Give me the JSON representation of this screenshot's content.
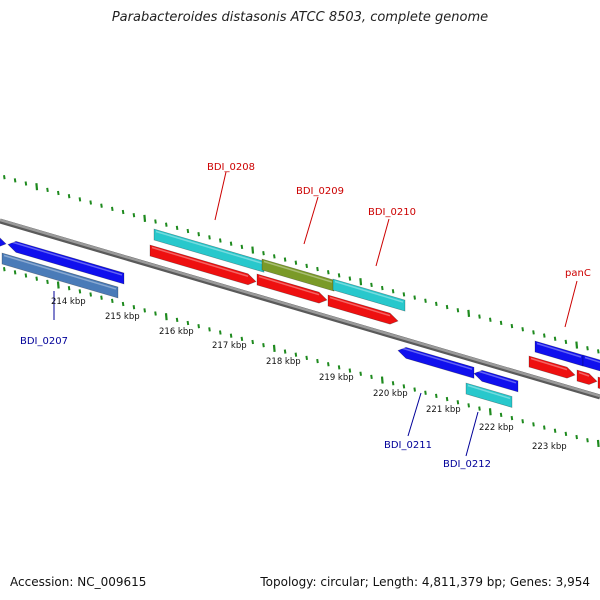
{
  "title": "Parabacteroides distasonis ATCC 8503, complete genome",
  "accession_text": "Accession: NC_009615",
  "summary_text": "Topology: circular; Length: 4,811,379 bp; Genes: 3,954",
  "colors": {
    "blue": "#1010ee",
    "steel": "#4a7bb8",
    "cyan": "#28c8cc",
    "red": "#ee1010",
    "olive": "#7a9a28",
    "green_ticks": "#1e8a1e",
    "backbone": "#888888",
    "label_red": "#cc0000",
    "label_blue": "#000099"
  },
  "ruler": [
    "214 kbp",
    "215 kbp",
    "216 kbp",
    "217 kbp",
    "218 kbp",
    "219 kbp",
    "220 kbp",
    "221 kbp",
    "222 kbp",
    "223 kbp"
  ],
  "gene_labels": [
    {
      "text": "BDI_0207",
      "color": "label_blue"
    },
    {
      "text": "BDI_0208",
      "color": "label_red"
    },
    {
      "text": "BDI_0209",
      "color": "label_red"
    },
    {
      "text": "BDI_0210",
      "color": "label_red"
    },
    {
      "text": "panC",
      "color": "label_red"
    },
    {
      "text": "BDI_0211",
      "color": "label_blue"
    },
    {
      "text": "BDI_0212",
      "color": "label_blue"
    }
  ]
}
